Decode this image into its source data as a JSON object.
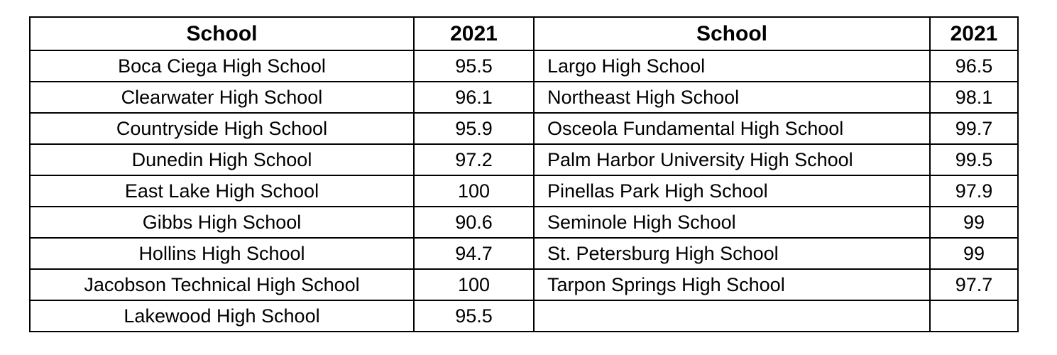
{
  "table": {
    "left": {
      "header": [
        "School",
        "2021"
      ],
      "rows": [
        [
          "Boca Ciega High School",
          95.5
        ],
        [
          "Clearwater High School",
          96.1
        ],
        [
          "Countryside High School",
          95.9
        ],
        [
          "Dunedin High School",
          97.2
        ],
        [
          "East Lake High School",
          100
        ],
        [
          "Gibbs High School",
          90.6
        ],
        [
          "Hollins High School",
          94.7
        ],
        [
          "Jacobson Technical High School",
          100
        ],
        [
          "Lakewood High School",
          95.5
        ]
      ]
    },
    "right": {
      "header": [
        "School",
        "2021"
      ],
      "rows": [
        [
          "Largo High School",
          96.5
        ],
        [
          "Northeast High School",
          98.1
        ],
        [
          "Osceola Fundamental High School",
          99.7
        ],
        [
          "Palm Harbor University High School",
          99.5
        ],
        [
          "Pinellas Park High School",
          97.9
        ],
        [
          "Seminole High School",
          99
        ],
        [
          "St. Petersburg High School",
          99
        ],
        [
          "Tarpon Springs High School",
          97.7
        ]
      ]
    }
  }
}
